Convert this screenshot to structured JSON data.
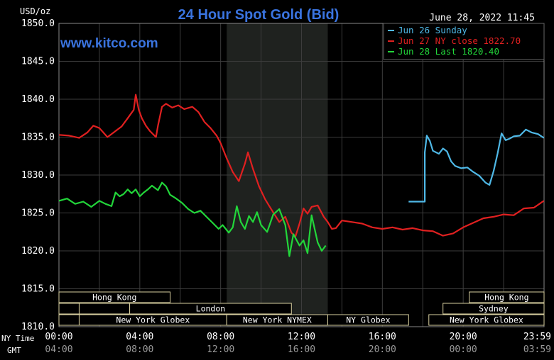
{
  "chart_data": {
    "type": "line",
    "title": "24 Hour Spot Gold (Bid)",
    "unit_label": "USD/oz",
    "timestamp": "June 28, 2022 11:45",
    "watermark": "www.kitco.com",
    "ylim": [
      1810,
      1850
    ],
    "y_ticks": [
      "1850.0",
      "1845.0",
      "1840.0",
      "1835.0",
      "1830.0",
      "1825.0",
      "1820.0",
      "1815.0",
      "1810.0"
    ],
    "x_row_labels": {
      "ny": "NY Time",
      "gmt": "GMT"
    },
    "x_ticks_ny": [
      "00:00",
      "04:00",
      "08:00",
      "12:00",
      "16:00",
      "20:00",
      "23:59"
    ],
    "x_ticks_gmt": [
      "04:00",
      "08:00",
      "12:00",
      "16:00",
      "20:00",
      "00:00",
      "03:59"
    ],
    "legend": [
      {
        "label": "Jun 26 Sunday",
        "color": "#4fb8e6"
      },
      {
        "label": "Jun 27 NY close 1822.70",
        "color": "#e02020"
      },
      {
        "label": "Jun 28 Last 1820.40",
        "color": "#22d63a"
      }
    ],
    "sessions": [
      {
        "label": "Hong Kong",
        "start": 0,
        "end": 5.5,
        "row": 0
      },
      {
        "label": "Hong Kong",
        "start": 20.3,
        "end": 24,
        "row": 0
      },
      {
        "label": "",
        "start": 0,
        "end": 1,
        "row": 1
      },
      {
        "label": "",
        "start": 1,
        "end": 3.5,
        "row": 1
      },
      {
        "label": "",
        "start": 3.5,
        "end": 5.5,
        "row": 1
      },
      {
        "label": "London",
        "start": 3.5,
        "end": 11.5,
        "row": 1
      },
      {
        "label": "Sydney",
        "start": 19,
        "end": 24,
        "row": 1
      },
      {
        "label": "",
        "start": 0,
        "end": 1,
        "row": 2
      },
      {
        "label": "New York Globex",
        "start": 1,
        "end": 8.3,
        "row": 2
      },
      {
        "label": "New York NYMEX",
        "start": 8.3,
        "end": 13.3,
        "row": 2
      },
      {
        "label": "NY Globex",
        "start": 13.3,
        "end": 17.3,
        "row": 2
      },
      {
        "label": "New York Globex",
        "start": 18.3,
        "end": 24,
        "row": 2
      }
    ],
    "shaded_region": [
      8.3,
      13.3
    ],
    "series": [
      {
        "name": "Jun 26 Sunday",
        "color": "#4fb8e6",
        "x": [
          17.3,
          18.1,
          18.1,
          18.2,
          18.35,
          18.5,
          18.8,
          19.0,
          19.2,
          19.4,
          19.6,
          19.9,
          20.2,
          20.5,
          20.8,
          21.1,
          21.3,
          21.5,
          21.7,
          21.9,
          22.1,
          22.3,
          22.5,
          22.8,
          23.1,
          23.4,
          23.7,
          23.99
        ],
        "y": [
          1826.5,
          1826.5,
          1833.0,
          1835.2,
          1834.5,
          1833.2,
          1832.8,
          1833.5,
          1833.1,
          1831.8,
          1831.2,
          1830.9,
          1831.0,
          1830.4,
          1829.9,
          1829.0,
          1828.7,
          1830.5,
          1832.8,
          1835.5,
          1834.6,
          1834.8,
          1835.1,
          1835.2,
          1836.0,
          1835.6,
          1835.4,
          1834.9
        ]
      },
      {
        "name": "Jun 27 NY close 1822.70",
        "color": "#e02020",
        "x": [
          0,
          0.5,
          1.0,
          1.4,
          1.7,
          2.0,
          2.4,
          2.8,
          3.1,
          3.4,
          3.7,
          3.8,
          3.95,
          4.1,
          4.3,
          4.5,
          4.8,
          4.9,
          5.1,
          5.3,
          5.6,
          5.9,
          6.2,
          6.6,
          6.9,
          7.2,
          7.5,
          7.8,
          8.0,
          8.3,
          8.6,
          8.9,
          9.2,
          9.35,
          9.6,
          9.9,
          10.2,
          10.5,
          10.9,
          11.2,
          11.5,
          11.7,
          11.9,
          12.1,
          12.3,
          12.5,
          12.8,
          13.1,
          13.3,
          13.5,
          13.7,
          14.0,
          14.5,
          15.0,
          15.5,
          16.0,
          16.5,
          17.0,
          17.5,
          18.0,
          18.5,
          19.0,
          19.5,
          20.0,
          20.5,
          21.0,
          21.5,
          22.0,
          22.5,
          23.0,
          23.5,
          23.99
        ],
        "y": [
          1835.3,
          1835.2,
          1834.9,
          1835.6,
          1836.5,
          1836.2,
          1835.0,
          1835.8,
          1836.4,
          1837.5,
          1838.6,
          1840.6,
          1838.6,
          1837.5,
          1836.5,
          1835.8,
          1835.0,
          1836.5,
          1839.0,
          1839.4,
          1838.9,
          1839.2,
          1838.7,
          1839.0,
          1838.3,
          1837.0,
          1836.2,
          1835.2,
          1834.2,
          1832.2,
          1830.4,
          1829.2,
          1831.5,
          1833.0,
          1830.8,
          1828.5,
          1826.8,
          1825.5,
          1823.8,
          1824.5,
          1822.4,
          1821.9,
          1823.6,
          1825.6,
          1824.9,
          1825.8,
          1826.0,
          1824.5,
          1823.8,
          1822.9,
          1823.0,
          1824.0,
          1823.8,
          1823.6,
          1823.1,
          1822.9,
          1823.1,
          1822.8,
          1823.0,
          1822.7,
          1822.6,
          1822.0,
          1822.3,
          1823.1,
          1823.7,
          1824.3,
          1824.5,
          1824.8,
          1824.7,
          1825.6,
          1825.7,
          1826.6
        ]
      },
      {
        "name": "Jun 28 Last 1820.40",
        "color": "#22d63a",
        "x": [
          0,
          0.4,
          0.8,
          1.2,
          1.6,
          2.0,
          2.3,
          2.6,
          2.8,
          3.0,
          3.2,
          3.4,
          3.6,
          3.8,
          4.0,
          4.2,
          4.4,
          4.6,
          4.9,
          5.1,
          5.3,
          5.5,
          5.8,
          6.1,
          6.4,
          6.7,
          7.0,
          7.3,
          7.6,
          7.9,
          8.1,
          8.4,
          8.6,
          8.8,
          9.0,
          9.2,
          9.4,
          9.6,
          9.8,
          10.0,
          10.3,
          10.6,
          10.9,
          11.2,
          11.4,
          11.6,
          11.9,
          12.1,
          12.3,
          12.5,
          12.8,
          13.0,
          13.2
        ],
        "y": [
          1826.6,
          1826.9,
          1826.2,
          1826.5,
          1825.8,
          1826.6,
          1826.2,
          1825.9,
          1827.7,
          1827.2,
          1827.5,
          1828.1,
          1827.6,
          1828.1,
          1827.2,
          1827.7,
          1828.1,
          1828.6,
          1828.0,
          1829.0,
          1828.5,
          1827.4,
          1826.9,
          1826.3,
          1825.5,
          1825.0,
          1825.3,
          1824.5,
          1823.7,
          1822.9,
          1823.4,
          1822.4,
          1823.1,
          1825.9,
          1823.8,
          1822.9,
          1824.6,
          1823.8,
          1825.1,
          1823.4,
          1822.5,
          1824.8,
          1825.5,
          1823.4,
          1819.3,
          1822.2,
          1820.7,
          1821.4,
          1819.7,
          1824.7,
          1821.1,
          1820.0,
          1820.7
        ]
      }
    ]
  }
}
